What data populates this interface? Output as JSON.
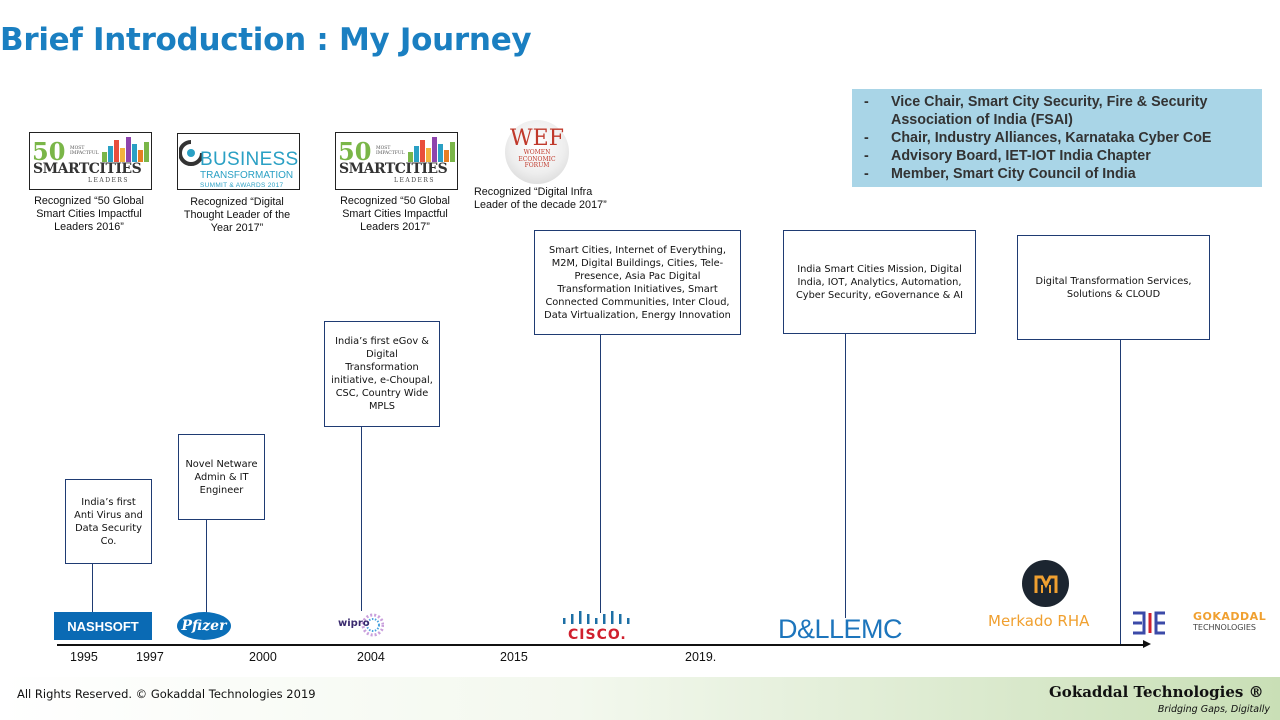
{
  "title": "Brief Introduction : My Journey",
  "roles": [
    "Vice Chair, Smart City Security, Fire & Security Association of India (FSAI)",
    "Chair, Industry Alliances, Karnataka Cyber CoE",
    "Advisory Board, IET-IOT India Chapter",
    "Member, Smart City Council of India"
  ],
  "awards": [
    {
      "caption": "Recognized “50 Global Smart Cities Impactful Leaders 2016”",
      "logo": {
        "big": "50",
        "small": "MOST IMPACTFUL",
        "name": "SMARTCITIES",
        "sub": "LEADERS",
        "tag": "(GLOBAL LISTING)"
      }
    },
    {
      "caption": "Recognized “Digital Thought Leader of the Year 2017”",
      "logo": {
        "name": "BUSINESS",
        "sub": "TRANSFORMATION",
        "tag": "SUMMIT & AWARDS 2017"
      }
    },
    {
      "caption": "Recognized “50 Global Smart Cities Impactful Leaders 2017”",
      "logo": {
        "big": "50",
        "small": "MOST IMPACTFUL",
        "name": "SMARTCITIES",
        "sub": "LEADERS",
        "tag": "(GLOBAL LISTING)"
      }
    },
    {
      "caption": "Recognized “Digital Infra Leader of the decade 2017”",
      "logo": {
        "big": "WEF",
        "sub": "WOMEN ECONOMIC FORUM"
      }
    }
  ],
  "milestones": [
    "India’s first Anti Virus and Data Security Co.",
    "Novel Netware Admin & IT Engineer",
    "India’s first eGov & Digital Transformation initiative, e-Choupal, CSC, Country Wide MPLS",
    "Smart Cities, Internet of Everything, M2M, Digital Buildings, Cities, Tele-Presence, Asia Pac Digital Transformation Initiatives, Smart Connected Communities, Inter Cloud, Data Virtualization, Energy Innovation",
    "India Smart Cities Mission, Digital India, IOT, Analytics, Automation, Cyber Security, eGovernance & AI",
    "Digital Transformation  Services, Solutions & CLOUD"
  ],
  "companies": {
    "nashsoft": "NASHSOFT",
    "pfizer": "Pfizer",
    "wipro": "wipro",
    "cisco": "CISCO.",
    "dell": "D&LLEMC",
    "merkado": "Merkado RHA",
    "gokaddal_name": "GOKADDAL",
    "gokaddal_sub": "TECHNOLOGIES"
  },
  "years": [
    "1995",
    "1997",
    "2000",
    "2004",
    "2015",
    "2019."
  ],
  "footer": {
    "rights": "All Rights Reserved. © Gokaddal Technologies 2019",
    "brand": "Gokaddal Technologies ®",
    "tagline": "Bridging Gaps, Digitally"
  },
  "colors": {
    "title": "#1a7fc1",
    "roles_bg": "#a9d5e7",
    "box_border": "#1f3b73",
    "nashsoft": "#0a6ab4",
    "gokaddal": "#f0a030"
  }
}
